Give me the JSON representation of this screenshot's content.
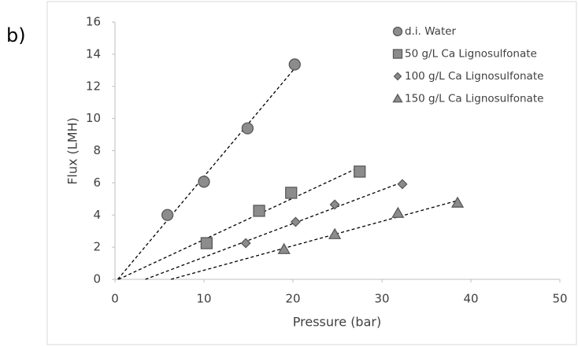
{
  "panel_label": "b)",
  "chart_data": {
    "type": "scatter",
    "x_label": "Pressure (bar)",
    "y_label": "Flux (LMH)",
    "xlim": [
      0,
      50
    ],
    "xticks": [
      0,
      10,
      20,
      30,
      40,
      50
    ],
    "ylim": [
      0,
      16
    ],
    "yticks": [
      0,
      2,
      4,
      6,
      8,
      10,
      12,
      14,
      16
    ],
    "trendline": "linear",
    "legend": "top-right",
    "series": [
      {
        "name": "d.i. Water",
        "marker": "circle",
        "color": "#8c8c8c",
        "x": [
          5.9,
          10.0,
          14.9,
          20.2
        ],
        "values": [
          4.0,
          6.07,
          9.39,
          13.36
        ]
      },
      {
        "name": "50 g/L Ca Lignosulfonate",
        "marker": "square",
        "color": "#8c8c8c",
        "x": [
          10.3,
          16.2,
          19.8,
          27.5
        ],
        "values": [
          2.25,
          4.26,
          5.38,
          6.7
        ]
      },
      {
        "name": "100 g/L Ca Lignosulfonate",
        "marker": "diamond",
        "color": "#8c8c8c",
        "x": [
          14.7,
          20.3,
          24.7,
          32.3
        ],
        "values": [
          2.25,
          3.57,
          4.65,
          5.92
        ]
      },
      {
        "name": "150 g/L Ca Lignosulfonate",
        "marker": "triangle",
        "color": "#8c8c8c",
        "x": [
          19.0,
          24.7,
          31.8,
          38.5
        ],
        "values": [
          1.86,
          2.79,
          4.11,
          4.75
        ]
      }
    ]
  }
}
